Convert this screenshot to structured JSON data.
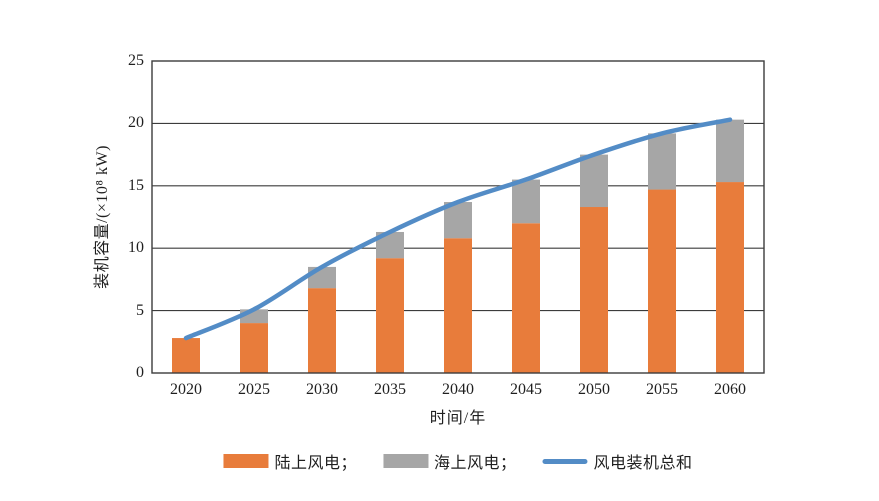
{
  "chart_data": {
    "type": "bar",
    "subtype": "stacked-bars-with-total-line",
    "title": "",
    "categories": [
      "2020",
      "2025",
      "2030",
      "2035",
      "2040",
      "2045",
      "2050",
      "2055",
      "2060"
    ],
    "series": [
      {
        "name": "陆上风电",
        "type": "bar",
        "stacked": true,
        "color": "#E87C3B",
        "values": [
          2.8,
          4.0,
          6.8,
          9.2,
          10.8,
          12.0,
          13.3,
          14.7,
          15.3
        ]
      },
      {
        "name": "海上风电",
        "type": "bar",
        "stacked": true,
        "color": "#A6A6A6",
        "values": [
          0.0,
          1.1,
          1.7,
          2.1,
          2.9,
          3.5,
          4.2,
          4.5,
          5.0
        ]
      },
      {
        "name": "风电装机总和",
        "type": "line",
        "color": "#538CC6",
        "values": [
          2.8,
          5.1,
          8.5,
          11.3,
          13.7,
          15.5,
          17.5,
          19.2,
          20.3
        ]
      }
    ],
    "xlabel": "时间/年",
    "ylabel": "装机容量/(×10⁸ kW)",
    "ylim": [
      0,
      25
    ],
    "yticks": [
      0,
      5,
      10,
      15,
      20,
      25
    ],
    "grid": "horizontal",
    "plot_border": true,
    "legend_position": "bottom",
    "axis_color": "#3c3c3c",
    "background": "#ffffff"
  },
  "legend": {
    "items": [
      {
        "label": "陆上风电；",
        "swatch": "bar",
        "color": "#E87C3B"
      },
      {
        "label": "海上风电；",
        "swatch": "bar",
        "color": "#A6A6A6"
      },
      {
        "label": "风电装机总和",
        "swatch": "line",
        "color": "#538CC6"
      }
    ]
  }
}
